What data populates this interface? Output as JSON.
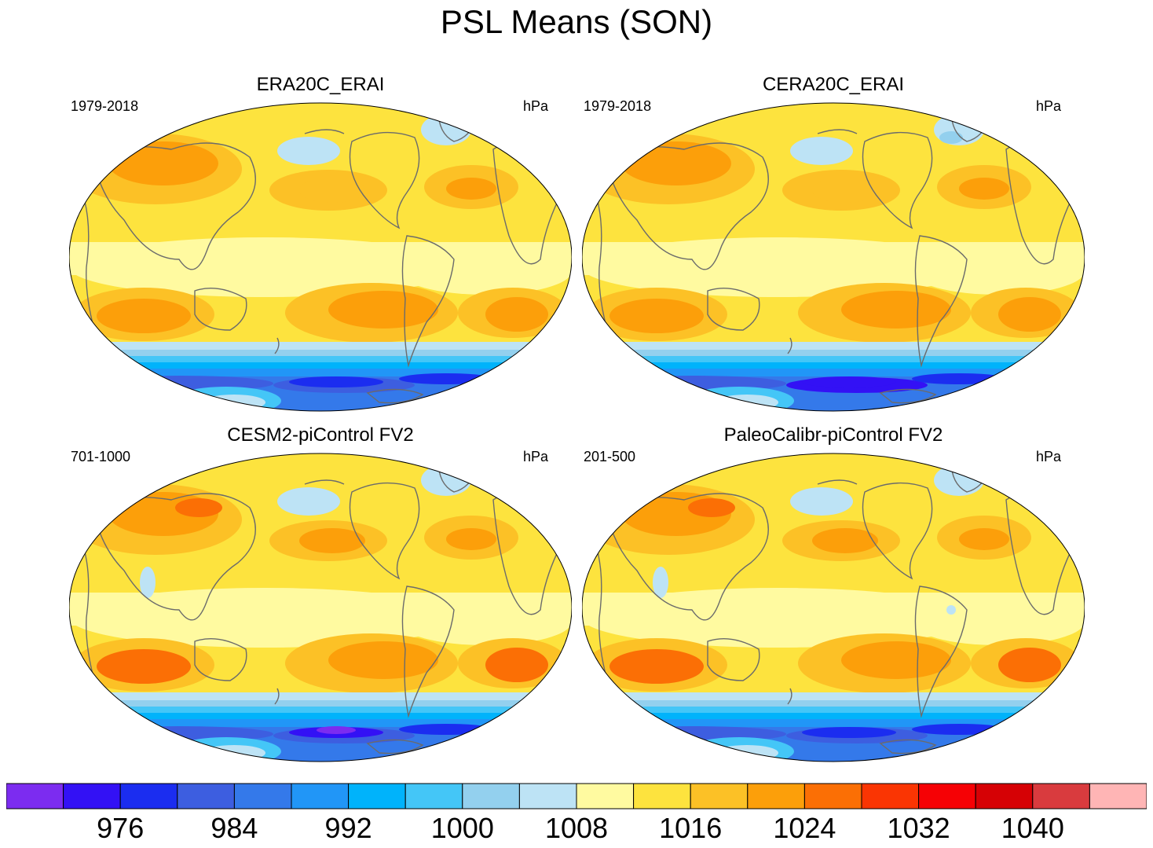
{
  "title": "PSL Means (SON)",
  "panels": [
    {
      "title": "ERA20C_ERAI",
      "period": "1979-2018",
      "units": "hPa"
    },
    {
      "title": "CERA20C_ERAI",
      "period": "1979-2018",
      "units": "hPa"
    },
    {
      "title": "CESM2-piControl FV2",
      "period": "701-1000",
      "units": "hPa"
    },
    {
      "title": "PaleoCalibr-piControl FV2",
      "period": "201-500",
      "units": "hPa"
    }
  ],
  "colorbar": {
    "colors": [
      "#7c2cf0",
      "#3311f5",
      "#1b2df0",
      "#3d5ee0",
      "#3479ea",
      "#2196f7",
      "#00b3fb",
      "#44c6f7",
      "#93d0ee",
      "#bde3f5",
      "#fffaa0",
      "#fde33e",
      "#fcc126",
      "#fc9f0a",
      "#fb6f05",
      "#fa3503",
      "#f60105",
      "#d60105",
      "#d93b3e",
      "#ffb5b5"
    ],
    "tick_labels": [
      "976",
      "984",
      "992",
      "1000",
      "1008",
      "1016",
      "1024",
      "1032",
      "1040"
    ]
  },
  "chart_data": {
    "type": "heatmap",
    "title": "PSL Means (SON)",
    "variable": "PSL",
    "units": "hPa",
    "contour_levels": [
      972,
      976,
      980,
      984,
      988,
      992,
      996,
      1000,
      1004,
      1008,
      1012,
      1016,
      1020,
      1024,
      1028,
      1032,
      1036,
      1040,
      1044
    ],
    "panels": [
      "ERA20C_ERAI",
      "CERA20C_ERAI",
      "CESM2-piControl FV2",
      "PaleoCalibr-piControl FV2"
    ]
  }
}
